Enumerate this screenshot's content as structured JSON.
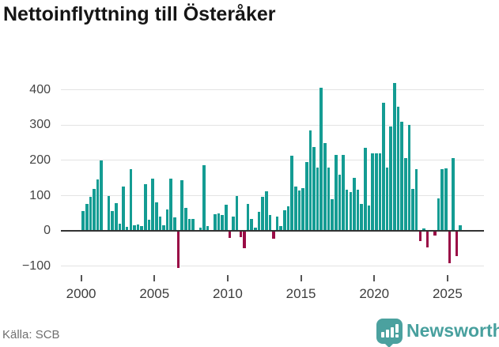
{
  "title": "Nettoinflyttning till Österåker",
  "source": "Källa: SCB",
  "brand": {
    "name": "Newsworthy"
  },
  "colors": {
    "bar_positive": "#149c93",
    "bar_negative": "#9a0c46",
    "gridline": "#e3e3e3",
    "zero_line": "#333333",
    "brand_teal": "#4ba19f"
  },
  "chart_data": {
    "type": "bar",
    "title": "Nettoinflyttning till Österåker",
    "xlabel": "",
    "ylabel": "",
    "start_year": 2000,
    "bars_per_year": 4,
    "y_ticks": [
      400,
      300,
      200,
      100,
      0,
      -100
    ],
    "ylim": [
      -150,
      440
    ],
    "x_tick_labels": [
      "2000",
      "2005",
      "2010",
      "2015",
      "2020",
      "2025"
    ],
    "grid": true,
    "legend": "none",
    "values": [
      57,
      76,
      96,
      120,
      146,
      200,
      3,
      100,
      57,
      80,
      20,
      126,
      12,
      175,
      16,
      19,
      14,
      133,
      31,
      149,
      82,
      40,
      16,
      61,
      148,
      39,
      -104,
      144,
      65,
      35,
      35,
      2,
      9,
      186,
      14,
      4,
      48,
      50,
      46,
      75,
      -19,
      40,
      99,
      -17,
      -48,
      76,
      35,
      10,
      54,
      97,
      113,
      45,
      -21,
      42,
      14,
      59,
      70,
      213,
      125,
      115,
      122,
      196,
      286,
      238,
      180,
      406,
      250,
      180,
      90,
      216,
      160,
      215,
      118,
      110,
      150,
      117,
      76,
      235,
      72,
      221,
      219,
      221,
      364,
      180,
      296,
      420,
      352,
      309,
      206,
      300,
      120,
      175,
      -29,
      8,
      -47,
      0,
      -13,
      93,
      175,
      177,
      -92,
      207,
      -70,
      16
    ]
  }
}
